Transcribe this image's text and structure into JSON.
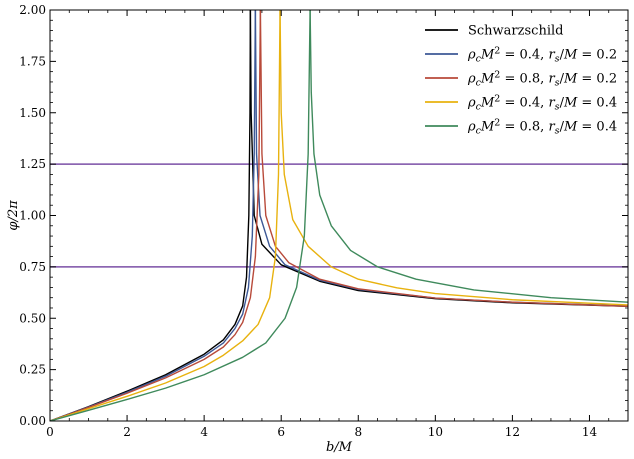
{
  "chart_data": {
    "type": "line",
    "title": "",
    "xlabel": "b/M",
    "ylabel": "φ/2π",
    "xlim": [
      0,
      15
    ],
    "ylim": [
      0,
      2
    ],
    "x_ticks": [
      0,
      2,
      4,
      6,
      8,
      10,
      12,
      14
    ],
    "x_tick_labels": [
      "0",
      "2",
      "4",
      "6",
      "8",
      "10",
      "12",
      "14"
    ],
    "y_ticks": [
      0,
      0.25,
      0.5,
      0.75,
      1.0,
      1.25,
      1.5,
      1.75,
      2.0
    ],
    "y_tick_labels": [
      "0.00",
      "0.25",
      "0.50",
      "0.75",
      "1.00",
      "1.25",
      "1.50",
      "1.75",
      "2.00"
    ],
    "legend_position": "top-right",
    "reference_lines": [
      {
        "orientation": "horizontal",
        "y": 0.75,
        "color": "#7b4fa6"
      },
      {
        "orientation": "horizontal",
        "y": 1.25,
        "color": "#7b4fa6"
      }
    ],
    "series": [
      {
        "name": "Schwarzschild",
        "label_parts": [
          "Schwarzschild"
        ],
        "color": "#000000",
        "inner": [
          [
            0,
            0
          ],
          [
            1,
            0.07
          ],
          [
            2,
            0.145
          ],
          [
            3,
            0.225
          ],
          [
            4,
            0.325
          ],
          [
            4.5,
            0.395
          ],
          [
            4.8,
            0.47
          ],
          [
            5.0,
            0.56
          ],
          [
            5.1,
            0.7
          ],
          [
            5.16,
            1.0
          ],
          [
            5.19,
            1.5
          ],
          [
            5.2,
            2.0
          ]
        ],
        "outer": [
          [
            5.2,
            2.0
          ],
          [
            5.22,
            1.5
          ],
          [
            5.3,
            1.0
          ],
          [
            5.5,
            0.86
          ],
          [
            6,
            0.76
          ],
          [
            7,
            0.68
          ],
          [
            8,
            0.635
          ],
          [
            10,
            0.595
          ],
          [
            12,
            0.575
          ],
          [
            15,
            0.558
          ]
        ]
      },
      {
        "name": "ρcM²=0.4, rs/M=0.2",
        "label_parts": [
          "ρ",
          "c",
          "M",
          "2",
          " = 0.4, ",
          "r",
          "s",
          "/",
          "M",
          " = 0.2"
        ],
        "color": "#3d5896",
        "inner": [
          [
            0,
            0
          ],
          [
            1,
            0.068
          ],
          [
            2,
            0.14
          ],
          [
            3,
            0.218
          ],
          [
            4,
            0.315
          ],
          [
            4.5,
            0.38
          ],
          [
            4.8,
            0.45
          ],
          [
            5.0,
            0.52
          ],
          [
            5.15,
            0.65
          ],
          [
            5.25,
            0.9
          ],
          [
            5.3,
            1.3
          ],
          [
            5.33,
            2.0
          ]
        ],
        "outer": [
          [
            5.33,
            2.0
          ],
          [
            5.36,
            1.3
          ],
          [
            5.45,
            1.0
          ],
          [
            5.7,
            0.85
          ],
          [
            6.1,
            0.76
          ],
          [
            7,
            0.685
          ],
          [
            8,
            0.64
          ],
          [
            10,
            0.598
          ],
          [
            12,
            0.578
          ],
          [
            15,
            0.56
          ]
        ]
      },
      {
        "name": "ρcM²=0.8, rs/M=0.2",
        "label_parts": [
          "ρ",
          "c",
          "M",
          "2",
          " = 0.8, ",
          "r",
          "s",
          "/",
          "M",
          " = 0.2"
        ],
        "color": "#b84a3a",
        "inner": [
          [
            0,
            0
          ],
          [
            1,
            0.066
          ],
          [
            2,
            0.135
          ],
          [
            3,
            0.21
          ],
          [
            4,
            0.3
          ],
          [
            4.5,
            0.36
          ],
          [
            4.8,
            0.42
          ],
          [
            5.0,
            0.48
          ],
          [
            5.2,
            0.6
          ],
          [
            5.33,
            0.8
          ],
          [
            5.42,
            1.2
          ],
          [
            5.46,
            2.0
          ]
        ],
        "outer": [
          [
            5.46,
            2.0
          ],
          [
            5.5,
            1.3
          ],
          [
            5.6,
            1.0
          ],
          [
            5.85,
            0.85
          ],
          [
            6.2,
            0.77
          ],
          [
            7,
            0.69
          ],
          [
            8,
            0.643
          ],
          [
            10,
            0.598
          ],
          [
            12,
            0.578
          ],
          [
            15,
            0.558
          ]
        ]
      },
      {
        "name": "ρcM²=0.4, rs/M=0.4",
        "label_parts": [
          "ρ",
          "c",
          "M",
          "2",
          " = 0.4, ",
          "r",
          "s",
          "/",
          "M",
          " = 0.4"
        ],
        "color": "#e8b20f",
        "inner": [
          [
            0,
            0
          ],
          [
            1,
            0.06
          ],
          [
            2,
            0.12
          ],
          [
            3,
            0.185
          ],
          [
            4,
            0.265
          ],
          [
            4.5,
            0.32
          ],
          [
            5,
            0.39
          ],
          [
            5.4,
            0.47
          ],
          [
            5.7,
            0.6
          ],
          [
            5.85,
            0.8
          ],
          [
            5.93,
            1.2
          ],
          [
            5.97,
            2.0
          ]
        ],
        "outer": [
          [
            5.97,
            2.0
          ],
          [
            6.0,
            1.5
          ],
          [
            6.08,
            1.2
          ],
          [
            6.3,
            0.98
          ],
          [
            6.7,
            0.85
          ],
          [
            7.3,
            0.75
          ],
          [
            8,
            0.69
          ],
          [
            9,
            0.648
          ],
          [
            10,
            0.62
          ],
          [
            12,
            0.59
          ],
          [
            15,
            0.565
          ]
        ]
      },
      {
        "name": "ρcM²=0.8, rs/M=0.4",
        "label_parts": [
          "ρ",
          "c",
          "M",
          "2",
          " = 0.8, ",
          "r",
          "s",
          "/",
          "M",
          " = 0.4"
        ],
        "color": "#3f8a5c",
        "inner": [
          [
            0,
            0
          ],
          [
            1,
            0.052
          ],
          [
            2,
            0.105
          ],
          [
            3,
            0.16
          ],
          [
            4,
            0.225
          ],
          [
            5,
            0.31
          ],
          [
            5.6,
            0.38
          ],
          [
            6.1,
            0.5
          ],
          [
            6.4,
            0.65
          ],
          [
            6.6,
            0.9
          ],
          [
            6.7,
            1.3
          ],
          [
            6.75,
            2.0
          ]
        ],
        "outer": [
          [
            6.75,
            2.0
          ],
          [
            6.78,
            1.6
          ],
          [
            6.85,
            1.3
          ],
          [
            7.0,
            1.1
          ],
          [
            7.3,
            0.95
          ],
          [
            7.8,
            0.83
          ],
          [
            8.5,
            0.75
          ],
          [
            9.5,
            0.69
          ],
          [
            11,
            0.638
          ],
          [
            13,
            0.6
          ],
          [
            15,
            0.578
          ]
        ]
      }
    ]
  }
}
